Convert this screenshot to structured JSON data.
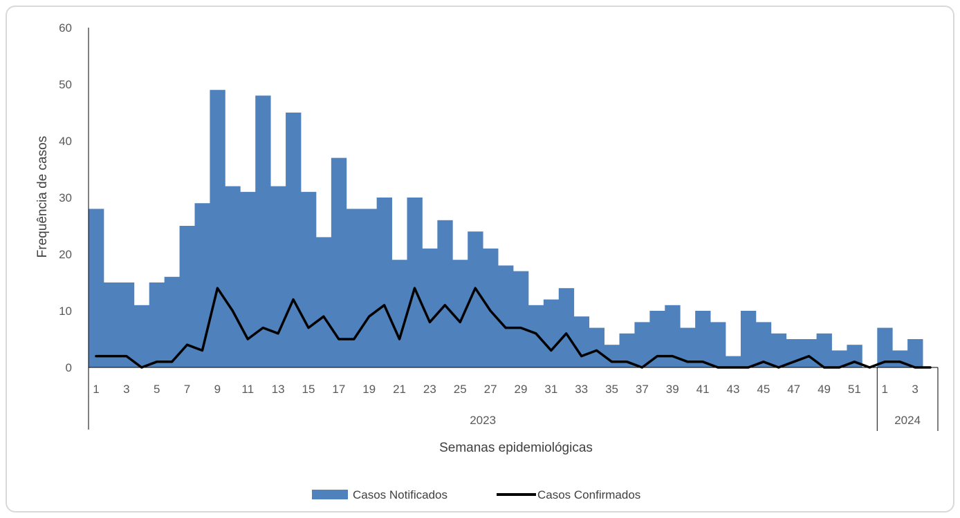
{
  "chart_data": {
    "type": "bar",
    "title": "",
    "xlabel": "Semanas epidemiológicas",
    "ylabel": "Frequência de casos",
    "ylim": [
      0,
      60
    ],
    "yticks": [
      0,
      10,
      20,
      30,
      40,
      50,
      60
    ],
    "grid": false,
    "legend_position": "bottom",
    "groups": [
      {
        "label": "2023",
        "weeks": 52
      },
      {
        "label": "2024",
        "weeks": 4
      }
    ],
    "categories": [
      "2023-1",
      "2023-2",
      "2023-3",
      "2023-4",
      "2023-5",
      "2023-6",
      "2023-7",
      "2023-8",
      "2023-9",
      "2023-10",
      "2023-11",
      "2023-12",
      "2023-13",
      "2023-14",
      "2023-15",
      "2023-16",
      "2023-17",
      "2023-18",
      "2023-19",
      "2023-20",
      "2023-21",
      "2023-22",
      "2023-23",
      "2023-24",
      "2023-25",
      "2023-26",
      "2023-27",
      "2023-28",
      "2023-29",
      "2023-30",
      "2023-31",
      "2023-32",
      "2023-33",
      "2023-34",
      "2023-35",
      "2023-36",
      "2023-37",
      "2023-38",
      "2023-39",
      "2023-40",
      "2023-41",
      "2023-42",
      "2023-43",
      "2023-44",
      "2023-45",
      "2023-46",
      "2023-47",
      "2023-48",
      "2023-49",
      "2023-50",
      "2023-51",
      "2023-52",
      "2024-1",
      "2024-2",
      "2024-3",
      "2024-4"
    ],
    "tick_labels": [
      "1",
      "3",
      "5",
      "7",
      "9",
      "11",
      "13",
      "15",
      "17",
      "19",
      "21",
      "23",
      "25",
      "27",
      "29",
      "31",
      "33",
      "35",
      "37",
      "39",
      "41",
      "43",
      "45",
      "47",
      "49",
      "51",
      "1",
      "3"
    ],
    "series": [
      {
        "name": "Casos Notificados",
        "kind": "bar",
        "color": "#4f81bd",
        "values": [
          28,
          15,
          15,
          11,
          15,
          16,
          25,
          29,
          49,
          32,
          31,
          48,
          32,
          45,
          31,
          23,
          37,
          28,
          28,
          30,
          19,
          30,
          21,
          26,
          19,
          24,
          21,
          18,
          17,
          11,
          12,
          14,
          9,
          7,
          4,
          6,
          8,
          10,
          11,
          7,
          10,
          8,
          2,
          10,
          8,
          6,
          5,
          5,
          6,
          3,
          4,
          0,
          7,
          3,
          5,
          0
        ]
      },
      {
        "name": "Casos Confirmados",
        "kind": "line",
        "color": "#000000",
        "values": [
          2,
          2,
          2,
          0,
          1,
          1,
          4,
          3,
          14,
          10,
          5,
          7,
          6,
          12,
          7,
          9,
          5,
          5,
          9,
          11,
          5,
          14,
          8,
          11,
          8,
          14,
          10,
          7,
          7,
          6,
          3,
          6,
          2,
          3,
          1,
          1,
          0,
          2,
          2,
          1,
          1,
          0,
          0,
          0,
          1,
          0,
          1,
          2,
          0,
          0,
          1,
          0,
          1,
          1,
          0,
          0
        ]
      }
    ]
  }
}
